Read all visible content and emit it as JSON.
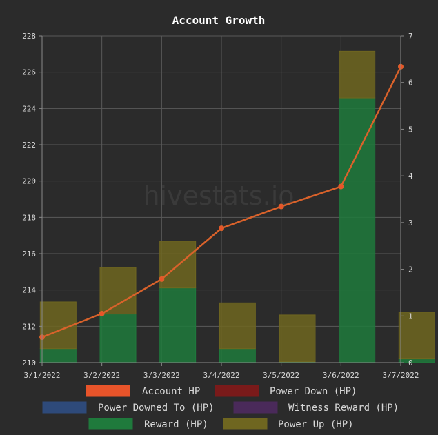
{
  "watermark": "hivestats.io",
  "chart_data": {
    "type": "bar",
    "title": "Account Growth",
    "categories": [
      "3/1/2022",
      "3/2/2022",
      "3/3/2022",
      "3/4/2022",
      "3/5/2022",
      "3/6/2022",
      "3/7/2022"
    ],
    "y_left": {
      "min": 210,
      "max": 228,
      "ticks": [
        210,
        212,
        214,
        216,
        218,
        220,
        222,
        224,
        226,
        228
      ]
    },
    "y_right": {
      "min": 0,
      "max": 7,
      "ticks": [
        0,
        1,
        2,
        3,
        4,
        5,
        6,
        7
      ]
    },
    "grid": true,
    "legend_position": "bottom",
    "series": [
      {
        "name": "Account HP",
        "kind": "line",
        "axis": "left",
        "color": "#e8542a",
        "values": [
          211.4,
          212.7,
          214.6,
          217.4,
          218.6,
          219.7,
          226.3
        ]
      },
      {
        "name": "Power Down (HP)",
        "kind": "bar",
        "axis": "right",
        "color": "#7a1a1a",
        "values": [
          0,
          0,
          0,
          0,
          0,
          0,
          0
        ]
      },
      {
        "name": "Power Downed To (HP)",
        "kind": "bar",
        "axis": "right",
        "color": "#2e4a7a",
        "values": [
          0,
          0,
          0,
          0,
          0,
          0,
          0
        ]
      },
      {
        "name": "Witness Reward (HP)",
        "kind": "bar",
        "axis": "right",
        "color": "#4a2a5a",
        "values": [
          0,
          0,
          0,
          0,
          0,
          0,
          0
        ]
      },
      {
        "name": "Reward (HP)",
        "kind": "bar",
        "axis": "right",
        "color": "#1f7a3c",
        "values": [
          0.3,
          1.04,
          1.6,
          0.3,
          0.02,
          5.67,
          0.08
        ]
      },
      {
        "name": "Power Up (HP)",
        "kind": "bar",
        "axis": "right",
        "color": "#6f6620",
        "values": [
          1.0,
          1.0,
          1.0,
          0.98,
          1.0,
          1.0,
          1.0
        ]
      }
    ]
  }
}
